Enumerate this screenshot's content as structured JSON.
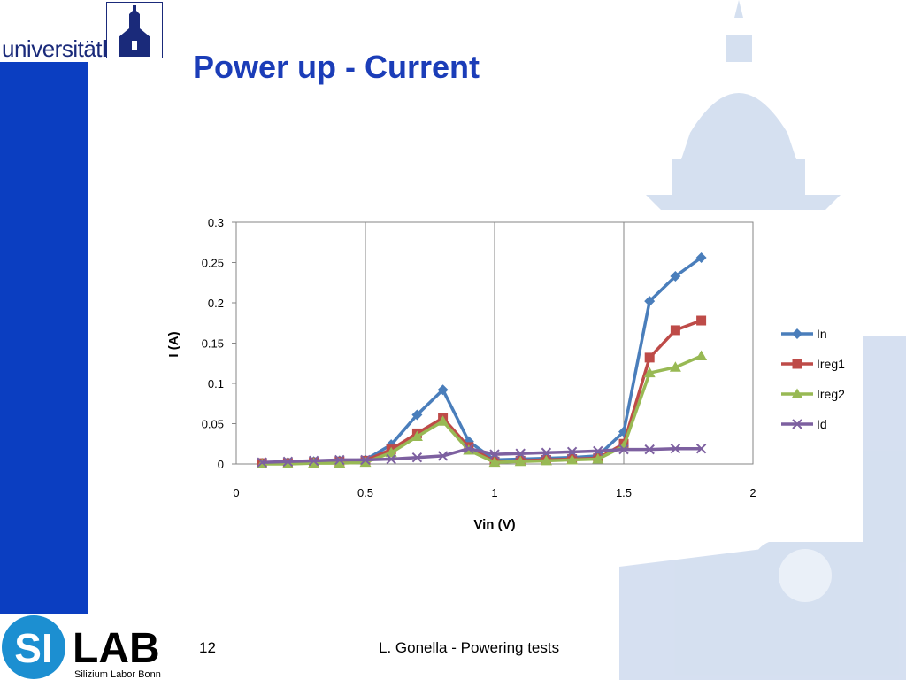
{
  "university_logo": {
    "text_regular": "universität",
    "text_bold": "bonn"
  },
  "slide": {
    "title": "Power up - Current",
    "page_number": "12",
    "footer": "L. Gonella - Powering tests"
  },
  "silab_logo": {
    "mark": "SI",
    "name": "LAB",
    "subtitle": "Silizium Labor Bonn"
  },
  "colors": {
    "sidebar": "#0b3ec1",
    "title": "#1b3db8"
  },
  "chart_data": {
    "type": "line",
    "title": "",
    "xlabel": "Vin (V)",
    "ylabel": "I (A)",
    "xlim": [
      0,
      2
    ],
    "ylim": [
      0,
      0.3
    ],
    "x_ticks": [
      "0",
      "0.5",
      "1",
      "1.5",
      "2"
    ],
    "y_ticks": [
      "0",
      "0.05",
      "0.1",
      "0.15",
      "0.2",
      "0.25",
      "0.3"
    ],
    "grid": "vertical",
    "legend": "right",
    "x": [
      0.1,
      0.2,
      0.3,
      0.4,
      0.5,
      0.6,
      0.7,
      0.8,
      0.9,
      1.0,
      1.1,
      1.2,
      1.3,
      1.4,
      1.5,
      1.6,
      1.7,
      1.8
    ],
    "series": [
      {
        "name": "In",
        "color": "#4a7ebb",
        "marker": "diamond",
        "values": [
          0.001,
          0.002,
          0.003,
          0.004,
          0.005,
          0.024,
          0.061,
          0.092,
          0.028,
          0.005,
          0.006,
          0.007,
          0.008,
          0.01,
          0.04,
          0.202,
          0.233,
          0.256
        ]
      },
      {
        "name": "Ireg1",
        "color": "#be4b48",
        "marker": "square",
        "values": [
          0.001,
          0.001,
          0.002,
          0.003,
          0.004,
          0.018,
          0.038,
          0.057,
          0.021,
          0.003,
          0.004,
          0.005,
          0.006,
          0.007,
          0.025,
          0.132,
          0.166,
          0.178
        ]
      },
      {
        "name": "Ireg2",
        "color": "#98b954",
        "marker": "triangle",
        "values": [
          0.0,
          0.0,
          0.001,
          0.001,
          0.002,
          0.014,
          0.034,
          0.053,
          0.017,
          0.002,
          0.003,
          0.004,
          0.005,
          0.006,
          0.022,
          0.113,
          0.12,
          0.134
        ]
      },
      {
        "name": "Id",
        "color": "#7d60a0",
        "marker": "x",
        "values": [
          0.002,
          0.003,
          0.004,
          0.005,
          0.005,
          0.006,
          0.008,
          0.01,
          0.019,
          0.012,
          0.013,
          0.014,
          0.015,
          0.016,
          0.018,
          0.018,
          0.019,
          0.019
        ]
      }
    ]
  }
}
